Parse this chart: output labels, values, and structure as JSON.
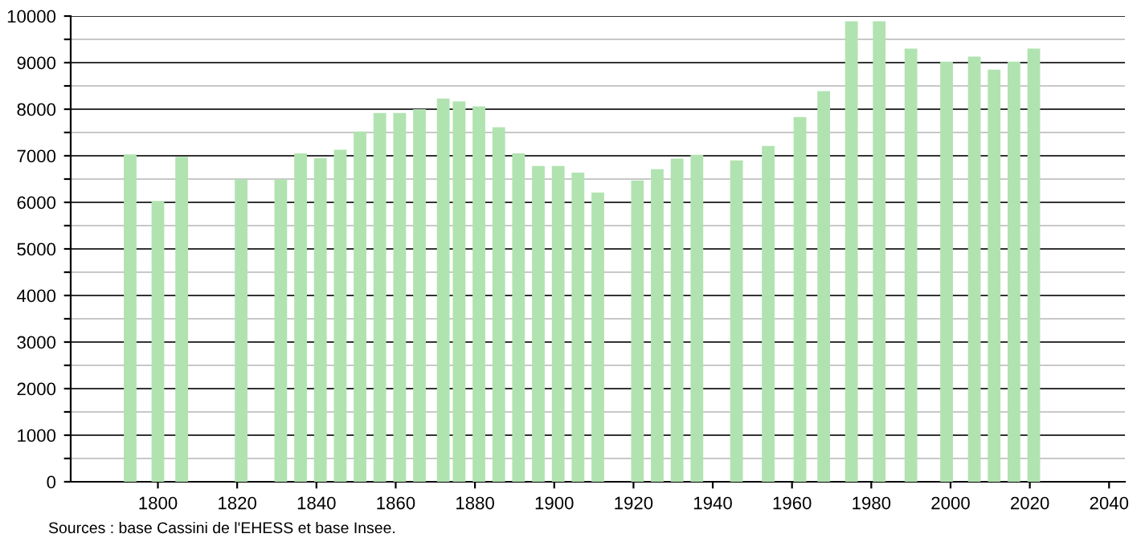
{
  "chart_data": {
    "type": "bar",
    "x": [
      1793,
      1800,
      1806,
      1821,
      1831,
      1836,
      1841,
      1846,
      1851,
      1856,
      1861,
      1866,
      1872,
      1876,
      1881,
      1886,
      1891,
      1896,
      1901,
      1906,
      1911,
      1921,
      1926,
      1931,
      1936,
      1946,
      1954,
      1962,
      1968,
      1975,
      1982,
      1990,
      1999,
      2006,
      2011,
      2016,
      2021
    ],
    "series": [
      {
        "color": "#b0e3b0",
        "values": [
          7030,
          6030,
          6980,
          6490,
          6490,
          7050,
          6950,
          7130,
          7520,
          7920,
          7920,
          8000,
          8230,
          8170,
          8060,
          7610,
          7050,
          6780,
          6780,
          6640,
          6210,
          6470,
          6710,
          6940,
          7020,
          6900,
          7210,
          7830,
          8390,
          9890,
          9890,
          9300,
          9020,
          9130,
          8850,
          9020,
          9300
        ]
      }
    ],
    "xlim": [
      1778,
      2044
    ],
    "xticks": [
      1800,
      1820,
      1840,
      1860,
      1880,
      1900,
      1920,
      1940,
      1960,
      1980,
      2000,
      2020,
      2040
    ],
    "ylim": [
      0,
      10000
    ],
    "yticks": [
      0,
      {
        "value": 500,
        "label": null
      },
      1000,
      {
        "value": 1500,
        "label": null
      },
      2000,
      {
        "value": 2500,
        "label": null
      },
      3000,
      {
        "value": 3500,
        "label": null
      },
      4000,
      {
        "value": 4500,
        "label": null
      },
      5000,
      {
        "value": 5500,
        "label": null
      },
      6000,
      {
        "value": 6500,
        "label": null
      },
      7000,
      {
        "value": 7500,
        "label": null
      },
      8000,
      {
        "value": 8500,
        "label": null
      },
      9000,
      {
        "value": 9500,
        "label": null
      },
      10000
    ],
    "grid": "y",
    "legend": false,
    "annotations": [
      "Sources : base Cassini de l'EHESS et base Insee."
    ]
  }
}
